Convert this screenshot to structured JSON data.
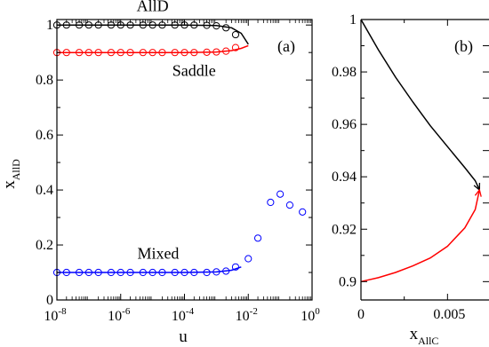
{
  "chart_data": [
    {
      "panel_label": "(a)",
      "type": "line",
      "xlabel": "u",
      "ylabel_main": "x",
      "ylabel_sub": "AllD",
      "xscale": "log",
      "xlim": [
        1e-08,
        1
      ],
      "ylim": [
        0,
        1.02
      ],
      "xticks": [
        {
          "base": "10",
          "exp": "-8",
          "value": 1e-08
        },
        {
          "base": "10",
          "exp": "-6",
          "value": 1e-06
        },
        {
          "base": "10",
          "exp": "-4",
          "value": 0.0001
        },
        {
          "base": "10",
          "exp": "-2",
          "value": 0.01
        },
        {
          "base": "10",
          "exp": "0",
          "value": 1
        }
      ],
      "yticks": [
        {
          "label": "0",
          "value": 0
        },
        {
          "label": "0.2",
          "value": 0.2
        },
        {
          "label": "0.4",
          "value": 0.4
        },
        {
          "label": "0.6",
          "value": 0.6
        },
        {
          "label": "0.8",
          "value": 0.8
        },
        {
          "label": "1",
          "value": 1
        }
      ],
      "series": [
        {
          "name": "AllD",
          "color": "#000000",
          "line": {
            "x": [
              1e-08,
              1e-06,
              0.0001,
              0.001,
              0.003,
              0.006,
              0.01
            ],
            "y": [
              1.0,
              1.0,
              1.0,
              0.998,
              0.99,
              0.97,
              0.93
            ]
          },
          "markers": {
            "x": [
              1e-08,
              2e-08,
              5e-08,
              1e-07,
              2e-07,
              5e-07,
              1e-06,
              2e-06,
              5e-06,
              1e-05,
              2e-05,
              5e-05,
              0.0001,
              0.0002,
              0.0005,
              0.001,
              0.002,
              0.004
            ],
            "y": [
              1.0,
              1.0,
              1.0,
              1.0,
              1.0,
              1.0,
              1.0,
              1.0,
              1.0,
              1.0,
              1.0,
              1.0,
              1.0,
              1.0,
              0.999,
              0.997,
              0.99,
              0.965
            ]
          }
        },
        {
          "name": "Saddle",
          "color": "#ff0000",
          "line": {
            "x": [
              1e-08,
              1e-06,
              0.0001,
              0.001,
              0.003,
              0.006,
              0.01
            ],
            "y": [
              0.9,
              0.9,
              0.9,
              0.902,
              0.907,
              0.915,
              0.925
            ]
          },
          "markers": {
            "x": [
              1e-08,
              2e-08,
              5e-08,
              1e-07,
              2e-07,
              5e-07,
              1e-06,
              2e-06,
              5e-06,
              1e-05,
              2e-05,
              5e-05,
              0.0001,
              0.0002,
              0.0005,
              0.001,
              0.002,
              0.004
            ],
            "y": [
              0.9,
              0.9,
              0.9,
              0.9,
              0.9,
              0.9,
              0.9,
              0.9,
              0.9,
              0.9,
              0.9,
              0.9,
              0.9,
              0.9,
              0.901,
              0.902,
              0.905,
              0.918
            ]
          }
        },
        {
          "name": "Mixed",
          "color": "#0000ff",
          "line": {
            "x": [
              1e-08,
              1e-06,
              0.0001,
              0.001,
              0.003,
              0.006
            ],
            "y": [
              0.1,
              0.1,
              0.1,
              0.102,
              0.108,
              0.12
            ]
          },
          "markers": {
            "x": [
              1e-08,
              2e-08,
              5e-08,
              1e-07,
              2e-07,
              5e-07,
              1e-06,
              2e-06,
              5e-06,
              1e-05,
              2e-05,
              5e-05,
              0.0001,
              0.0002,
              0.0005,
              0.001,
              0.002,
              0.004,
              0.01,
              0.02,
              0.05,
              0.1,
              0.2,
              0.5
            ],
            "y": [
              0.1,
              0.1,
              0.1,
              0.1,
              0.1,
              0.1,
              0.1,
              0.1,
              0.1,
              0.1,
              0.1,
              0.1,
              0.1,
              0.1,
              0.1,
              0.102,
              0.105,
              0.12,
              0.15,
              0.225,
              0.355,
              0.385,
              0.345,
              0.32
            ]
          }
        }
      ],
      "annotations": [
        {
          "text": "AllD",
          "x": 1e-05,
          "y": 1.07
        },
        {
          "text": "Saddle",
          "x": 0.0002,
          "y": 0.835
        },
        {
          "text": "Mixed",
          "x": 1.5e-05,
          "y": 0.17
        }
      ]
    },
    {
      "panel_label": "(b)",
      "type": "line",
      "xlabel_main": "x",
      "xlabel_sub": "AllC",
      "xlim": [
        0,
        0.0075
      ],
      "ylim": [
        0.893,
        1.0
      ],
      "xticks": [
        {
          "label": "0",
          "value": 0
        },
        {
          "label": "0.005",
          "value": 0.005
        }
      ],
      "yticks": [
        {
          "label": "0.9",
          "value": 0.9
        },
        {
          "label": "0.92",
          "value": 0.92
        },
        {
          "label": "0.94",
          "value": 0.94
        },
        {
          "label": "0.96",
          "value": 0.96
        },
        {
          "label": "0.98",
          "value": 0.98
        },
        {
          "label": "1",
          "value": 1.0
        }
      ],
      "series": [
        {
          "color": "#000000",
          "arrow_at_end": true,
          "line": {
            "x": [
              0,
              0.001,
              0.002,
              0.003,
              0.004,
              0.005,
              0.006,
              0.0066,
              0.00685
            ],
            "y": [
              1.0,
              0.9885,
              0.978,
              0.9685,
              0.9595,
              0.9515,
              0.9435,
              0.9385,
              0.935
            ]
          }
        },
        {
          "color": "#ff0000",
          "arrow_at_end": true,
          "line": {
            "x": [
              0,
              0.001,
              0.002,
              0.003,
              0.004,
              0.005,
              0.006,
              0.0066,
              0.00685
            ],
            "y": [
              0.9,
              0.9015,
              0.9035,
              0.906,
              0.909,
              0.9135,
              0.9205,
              0.9275,
              0.935
            ]
          }
        }
      ]
    }
  ]
}
